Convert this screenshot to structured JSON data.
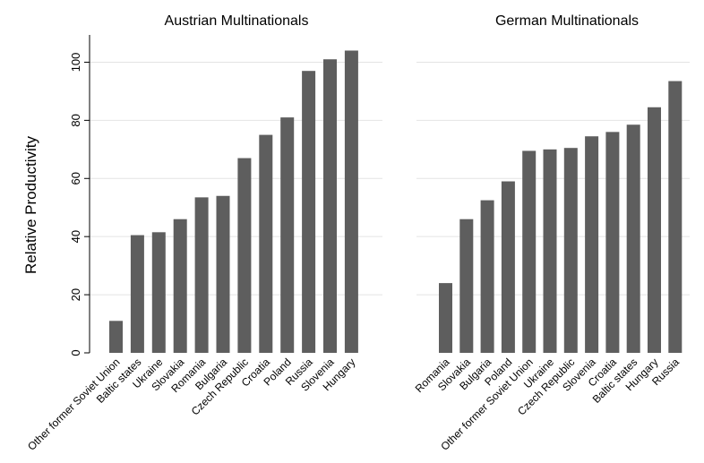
{
  "ylabel": "Relative Productivity",
  "chart_data": [
    {
      "type": "bar",
      "title": "Austrian Multinationals",
      "ylabel": "Relative Productivity",
      "ylim": [
        0,
        110
      ],
      "yticks": [
        0,
        20,
        40,
        60,
        80,
        100
      ],
      "grid": true,
      "bar_color": "#5e5e5e",
      "categories": [
        "Other former Soviet Union",
        "Baltic states",
        "Ukraine",
        "Slovakia",
        "Romania",
        "Bulgaria",
        "Czech Republic",
        "Croatia",
        "Poland",
        "Russia",
        "Slovenia",
        "Hungary"
      ],
      "values": [
        11,
        40.5,
        41.5,
        46,
        53.5,
        54,
        67,
        75,
        81,
        97,
        101,
        104
      ]
    },
    {
      "type": "bar",
      "title": "German Multinationals",
      "ylabel": "",
      "ylim": [
        0,
        110
      ],
      "yticks": [
        0,
        20,
        40,
        60,
        80,
        100
      ],
      "grid": true,
      "bar_color": "#5e5e5e",
      "categories": [
        "Romania",
        "Slovakia",
        "Bulgaria",
        "Poland",
        "Other former Soviet Union",
        "Ukraine",
        "Czech Republic",
        "Slovenia",
        "Croatia",
        "Baltic states",
        "Hungary",
        "Russia"
      ],
      "values": [
        24,
        46,
        52.5,
        59,
        69.5,
        70,
        70.5,
        74.5,
        76,
        78.5,
        84.5,
        93.5
      ]
    }
  ]
}
